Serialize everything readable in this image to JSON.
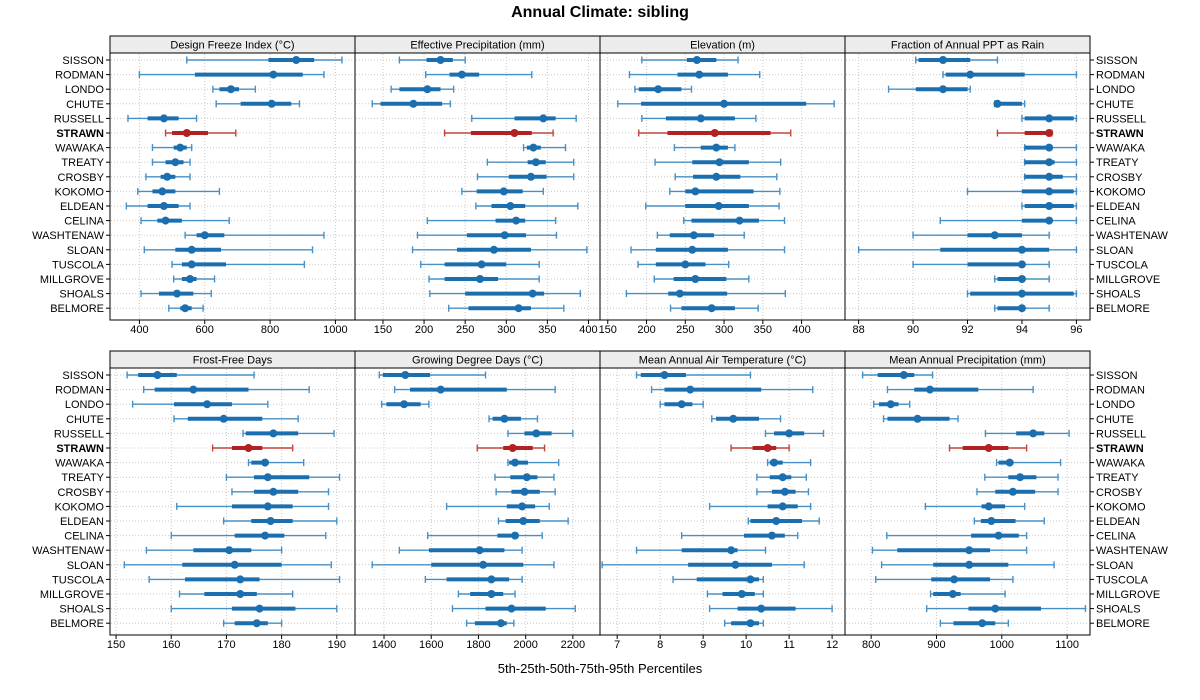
{
  "chart_data": {
    "type": "scatter",
    "subtype": "trellis-percentile-dotplot",
    "title": "Annual Climate: sibling",
    "footer": "5th-25th-50th-75th-95th Percentiles",
    "percentile_labels": [
      "5th",
      "25th",
      "50th",
      "75th",
      "95th"
    ],
    "legend_position": "none",
    "grid": "dotted",
    "highlight_site": "STRAWN",
    "sites": [
      "SISSON",
      "RODMAN",
      "LONDO",
      "CHUTE",
      "RUSSELL",
      "STRAWN",
      "WAWAKA",
      "TREATY",
      "CROSBY",
      "KOKOMO",
      "ELDEAN",
      "CELINA",
      "WASHTENAW",
      "SLOAN",
      "TUSCOLA",
      "MILLGROVE",
      "SHOALS",
      "BELMORE"
    ],
    "panels": [
      {
        "title": "Design Freeze Index (°C)",
        "domain": [
          310,
          1060
        ],
        "ticks": [
          400,
          600,
          800,
          1000
        ],
        "values": [
          [
            545,
            795,
            880,
            935,
            1020
          ],
          [
            400,
            570,
            810,
            900,
            965
          ],
          [
            625,
            645,
            680,
            705,
            755
          ],
          [
            635,
            710,
            805,
            865,
            890
          ],
          [
            365,
            425,
            475,
            520,
            575
          ],
          [
            480,
            500,
            545,
            610,
            695
          ],
          [
            440,
            505,
            525,
            545,
            560
          ],
          [
            440,
            480,
            510,
            535,
            555
          ],
          [
            420,
            465,
            485,
            510,
            555
          ],
          [
            395,
            440,
            470,
            510,
            645
          ],
          [
            360,
            425,
            475,
            520,
            555
          ],
          [
            405,
            455,
            480,
            530,
            675
          ],
          [
            540,
            575,
            600,
            660,
            965
          ],
          [
            415,
            510,
            560,
            650,
            930
          ],
          [
            500,
            530,
            560,
            665,
            905
          ],
          [
            505,
            530,
            555,
            575,
            630
          ],
          [
            405,
            460,
            515,
            565,
            620
          ],
          [
            490,
            525,
            540,
            560,
            595
          ]
        ]
      },
      {
        "title": "Effective Precipitation (mm)",
        "domain": [
          116,
          414
        ],
        "ticks": [
          150,
          200,
          250,
          300,
          350,
          400
        ],
        "values": [
          [
            170,
            203,
            220,
            235,
            250
          ],
          [
            202,
            231,
            246,
            267,
            331
          ],
          [
            160,
            170,
            204,
            220,
            236
          ],
          [
            137,
            147,
            187,
            222,
            232
          ],
          [
            258,
            310,
            345,
            360,
            385
          ],
          [
            225,
            257,
            310,
            331,
            357
          ],
          [
            321,
            325,
            333,
            342,
            372
          ],
          [
            277,
            326,
            336,
            348,
            382
          ],
          [
            265,
            303,
            330,
            349,
            382
          ],
          [
            246,
            264,
            297,
            320,
            345
          ],
          [
            263,
            282,
            305,
            323,
            387
          ],
          [
            204,
            287,
            312,
            323,
            360
          ],
          [
            192,
            252,
            298,
            324,
            361
          ],
          [
            186,
            240,
            285,
            330,
            398
          ],
          [
            196,
            225,
            270,
            300,
            340
          ],
          [
            206,
            225,
            268,
            290,
            340
          ],
          [
            207,
            250,
            332,
            346,
            390
          ],
          [
            230,
            254,
            315,
            330,
            370
          ]
        ]
      },
      {
        "title": "Elevation (m)",
        "domain": [
          140,
          456
        ],
        "ticks": [
          150,
          200,
          250,
          300,
          350,
          400
        ],
        "values": [
          [
            194,
            252,
            265,
            290,
            318
          ],
          [
            178,
            240,
            268,
            305,
            346
          ],
          [
            185,
            190,
            215,
            245,
            258
          ],
          [
            163,
            193,
            300,
            406,
            442
          ],
          [
            194,
            225,
            270,
            314,
            341
          ],
          [
            190,
            227,
            288,
            360,
            386
          ],
          [
            236,
            270,
            290,
            305,
            314
          ],
          [
            211,
            259,
            294,
            332,
            373
          ],
          [
            237,
            260,
            290,
            321,
            368
          ],
          [
            230,
            250,
            263,
            338,
            372
          ],
          [
            199,
            250,
            293,
            332,
            371
          ],
          [
            248,
            258,
            320,
            345,
            378
          ],
          [
            214,
            230,
            261,
            287,
            326
          ],
          [
            180,
            212,
            259,
            305,
            378
          ],
          [
            189,
            212,
            250,
            276,
            306
          ],
          [
            210,
            235,
            263,
            303,
            332
          ],
          [
            174,
            228,
            243,
            304,
            379
          ],
          [
            231,
            245,
            284,
            314,
            344
          ]
        ]
      },
      {
        "title": "Fraction of Annual PPT as Rain",
        "domain": [
          87.5,
          96.5
        ],
        "ticks": [
          88,
          90,
          92,
          94,
          96
        ],
        "values": [
          [
            90.1,
            90.2,
            91.1,
            92.1,
            93.1
          ],
          [
            91.1,
            91.2,
            92.1,
            94.1,
            96.0
          ],
          [
            89.1,
            90.1,
            91.1,
            92.0,
            92.1
          ],
          [
            93.0,
            93.0,
            93.1,
            94.0,
            94.1
          ],
          [
            94.0,
            94.1,
            95.0,
            95.9,
            96.0
          ],
          [
            93.1,
            94.1,
            95.0,
            95.1,
            95.1
          ],
          [
            94.1,
            94.1,
            95.0,
            95.1,
            96.0
          ],
          [
            94.1,
            94.1,
            95.0,
            95.2,
            96.0
          ],
          [
            94.1,
            94.1,
            95.0,
            95.5,
            96.0
          ],
          [
            92.0,
            94.0,
            95.0,
            95.9,
            96.0
          ],
          [
            94.0,
            94.1,
            95.0,
            95.9,
            96.0
          ],
          [
            91.0,
            94.0,
            95.0,
            95.1,
            96.0
          ],
          [
            90.0,
            92.0,
            93.0,
            94.0,
            95.0
          ],
          [
            88.0,
            91.0,
            94.0,
            95.0,
            96.0
          ],
          [
            90.0,
            92.0,
            94.0,
            94.1,
            95.0
          ],
          [
            93.0,
            93.1,
            94.0,
            94.1,
            95.0
          ],
          [
            92.0,
            92.1,
            94.0,
            95.9,
            96.0
          ],
          [
            93.0,
            93.1,
            94.0,
            94.1,
            95.0
          ]
        ]
      },
      {
        "title": "Frost-Free Days",
        "domain": [
          148.9,
          193.3
        ],
        "ticks": [
          150,
          160,
          170,
          180,
          190
        ],
        "values": [
          [
            152,
            154,
            157.5,
            161,
            175
          ],
          [
            155,
            157,
            164,
            174,
            185
          ],
          [
            153,
            160.5,
            166.5,
            171,
            177.5
          ],
          [
            160.5,
            163,
            169.5,
            176.5,
            183
          ],
          [
            173,
            173.5,
            178.5,
            183,
            189.5
          ],
          [
            167.5,
            171,
            174,
            176.5,
            182
          ],
          [
            174,
            174.5,
            177,
            177.5,
            184
          ],
          [
            170,
            175,
            177.5,
            185,
            190.5
          ],
          [
            171,
            175,
            178.5,
            183,
            188.5
          ],
          [
            161,
            171,
            177.5,
            182,
            188.5
          ],
          [
            169.5,
            174.5,
            178,
            182,
            190
          ],
          [
            160,
            171.5,
            177,
            180.5,
            188
          ],
          [
            155.5,
            164,
            170.5,
            174.5,
            180
          ],
          [
            151.5,
            162,
            171.5,
            180,
            189
          ],
          [
            156,
            162.5,
            172.5,
            176,
            190.5
          ],
          [
            161.5,
            166,
            172.5,
            175.5,
            182
          ],
          [
            160,
            171,
            176,
            182.5,
            190
          ],
          [
            169.5,
            171.5,
            175.5,
            177.5,
            180
          ]
        ]
      },
      {
        "title": "Growing Degree Days (°C)",
        "domain": [
          1277,
          2315
        ],
        "ticks": [
          1400,
          1600,
          1800,
          2000,
          2200
        ],
        "values": [
          [
            1380,
            1395,
            1490,
            1595,
            1830
          ],
          [
            1445,
            1510,
            1640,
            1920,
            2125
          ],
          [
            1390,
            1410,
            1485,
            1555,
            1590
          ],
          [
            1845,
            1860,
            1910,
            1980,
            2050
          ],
          [
            1925,
            1995,
            2045,
            2110,
            2200
          ],
          [
            1795,
            1905,
            1945,
            2030,
            2080
          ],
          [
            1925,
            1930,
            1955,
            2010,
            2140
          ],
          [
            1870,
            1935,
            2005,
            2050,
            2120
          ],
          [
            1875,
            1940,
            1995,
            2060,
            2125
          ],
          [
            1665,
            1920,
            1985,
            2040,
            2100
          ],
          [
            1885,
            1915,
            1990,
            2060,
            2180
          ],
          [
            1585,
            1880,
            1955,
            1970,
            2070
          ],
          [
            1465,
            1590,
            1805,
            1910,
            1985
          ],
          [
            1350,
            1600,
            1820,
            1990,
            2120
          ],
          [
            1575,
            1665,
            1855,
            1930,
            1985
          ],
          [
            1715,
            1765,
            1855,
            1905,
            1955
          ],
          [
            1690,
            1830,
            1940,
            2085,
            2210
          ],
          [
            1750,
            1785,
            1895,
            1920,
            1950
          ]
        ]
      },
      {
        "title": "Mean Annual Air Temperature (°C)",
        "domain": [
          6.6,
          12.3
        ],
        "ticks": [
          7,
          8,
          9,
          10,
          11,
          12
        ],
        "values": [
          [
            7.45,
            7.55,
            8.1,
            8.6,
            10.1
          ],
          [
            7.8,
            8.1,
            8.7,
            10.35,
            11.55
          ],
          [
            8.0,
            8.1,
            8.5,
            8.75,
            9.0
          ],
          [
            9.2,
            9.3,
            9.7,
            10.3,
            10.8
          ],
          [
            10.45,
            10.65,
            11.0,
            11.35,
            11.8
          ],
          [
            9.65,
            10.15,
            10.5,
            10.7,
            11.0
          ],
          [
            10.5,
            10.55,
            10.65,
            10.85,
            11.5
          ],
          [
            10.25,
            10.55,
            10.85,
            11.05,
            11.4
          ],
          [
            10.25,
            10.6,
            10.9,
            11.15,
            11.45
          ],
          [
            9.15,
            10.5,
            10.85,
            11.2,
            11.5
          ],
          [
            10.05,
            10.1,
            10.7,
            11.3,
            11.7
          ],
          [
            8.5,
            9.95,
            10.6,
            10.9,
            11.2
          ],
          [
            7.45,
            8.5,
            9.65,
            9.8,
            10.45
          ],
          [
            6.65,
            8.65,
            9.75,
            10.6,
            11.35
          ],
          [
            8.3,
            8.85,
            10.1,
            10.3,
            10.4
          ],
          [
            9.1,
            9.45,
            9.9,
            10.2,
            10.4
          ],
          [
            9.15,
            9.8,
            10.35,
            11.15,
            12.0
          ],
          [
            9.5,
            9.65,
            10.1,
            10.3,
            10.4
          ]
        ]
      },
      {
        "title": "Mean Annual Precipitation (mm)",
        "domain": [
          760,
          1135
        ],
        "ticks": [
          800,
          900,
          1000,
          1100
        ],
        "values": [
          [
            787,
            810,
            850,
            866,
            894
          ],
          [
            825,
            866,
            890,
            964,
            1048
          ],
          [
            804,
            812,
            830,
            842,
            859
          ],
          [
            819,
            825,
            871,
            920,
            933
          ],
          [
            975,
            1022,
            1048,
            1065,
            1103
          ],
          [
            920,
            940,
            980,
            1010,
            1038
          ],
          [
            992,
            995,
            1012,
            1018,
            1090
          ],
          [
            974,
            1010,
            1028,
            1053,
            1086
          ],
          [
            962,
            990,
            1017,
            1051,
            1086
          ],
          [
            883,
            969,
            980,
            1005,
            1035
          ],
          [
            958,
            968,
            984,
            1021,
            1065
          ],
          [
            824,
            953,
            995,
            1026,
            1038
          ],
          [
            802,
            840,
            950,
            982,
            1038
          ],
          [
            816,
            895,
            950,
            1010,
            1080
          ],
          [
            807,
            892,
            927,
            982,
            1017
          ],
          [
            891,
            895,
            925,
            937,
            1005
          ],
          [
            885,
            949,
            990,
            1060,
            1128
          ],
          [
            906,
            926,
            970,
            990,
            1010
          ]
        ]
      }
    ],
    "colors": {
      "series": "#1B6FAF",
      "series_thin": "#4690C6",
      "highlight": "#B22222",
      "highlight_thin": "#C1453B",
      "grid": "#C9C9C9",
      "strip_bg": "#ECECEC",
      "border": "#000000",
      "text": "#000000"
    }
  }
}
